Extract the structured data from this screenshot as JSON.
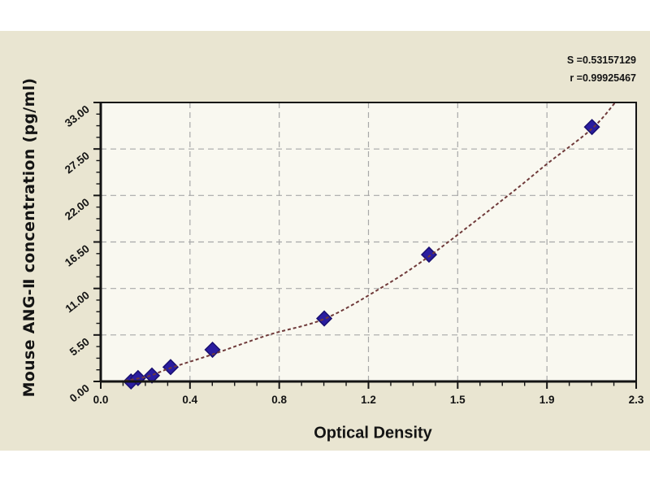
{
  "page": {
    "background_color": "#ffffff",
    "canvas_color": "#e9e5d1"
  },
  "stats": {
    "s_label": "S =0.53157129",
    "r_label": "r =0.99925467"
  },
  "chart_data": {
    "type": "scatter",
    "title": "",
    "xlabel": "Optical Density",
    "ylabel": "Mouse ANG-Ⅱ concentration (pg/ml)",
    "xlim": [
      0,
      2.3
    ],
    "ylim": [
      0,
      33
    ],
    "x_ticks": [
      0,
      0.3833,
      0.7667,
      1.15,
      1.5333,
      1.9167,
      2.3
    ],
    "x_tick_labels": [
      "0.0",
      "0.4",
      "0.8",
      "1.2",
      "1.5",
      "1.9",
      "2.3"
    ],
    "y_ticks": [
      0,
      5.5,
      11,
      16.5,
      22,
      27.5,
      33
    ],
    "y_tick_labels": [
      "0.00",
      "5.50",
      "11.00",
      "16.50",
      "22.00",
      "27.50",
      "33.00"
    ],
    "minor_divisions_per_major": 4,
    "grid": true,
    "legend": "none",
    "series": [
      {
        "name": "standard-points",
        "type": "scatter",
        "marker": "diamond",
        "color": "#2a1da0",
        "edge_color": "#191070",
        "points": [
          [
            0.13,
            0.0
          ],
          [
            0.16,
            0.4
          ],
          [
            0.22,
            0.7
          ],
          [
            0.3,
            1.7
          ],
          [
            0.48,
            3.75
          ],
          [
            0.96,
            7.45
          ],
          [
            1.41,
            15.0
          ],
          [
            2.11,
            30.1
          ]
        ]
      },
      {
        "name": "fit-curve",
        "type": "line",
        "color": "#6f3a3a",
        "dash": [
          4,
          3
        ],
        "points": [
          [
            0.08,
            0.0
          ],
          [
            0.16,
            0.35
          ],
          [
            0.22,
            0.75
          ],
          [
            0.3,
            1.6
          ],
          [
            0.48,
            3.2
          ],
          [
            0.72,
            5.5
          ],
          [
            0.96,
            7.4
          ],
          [
            1.2,
            11.0
          ],
          [
            1.41,
            14.8
          ],
          [
            1.75,
            22.0
          ],
          [
            1.92,
            25.8
          ],
          [
            2.11,
            29.9
          ],
          [
            2.21,
            33.0
          ]
        ]
      }
    ],
    "colors": {
      "plot_background": "#f9f8f0",
      "axis": "#141414",
      "grid": "#a8a8a8",
      "tick_text": "#141414"
    }
  }
}
